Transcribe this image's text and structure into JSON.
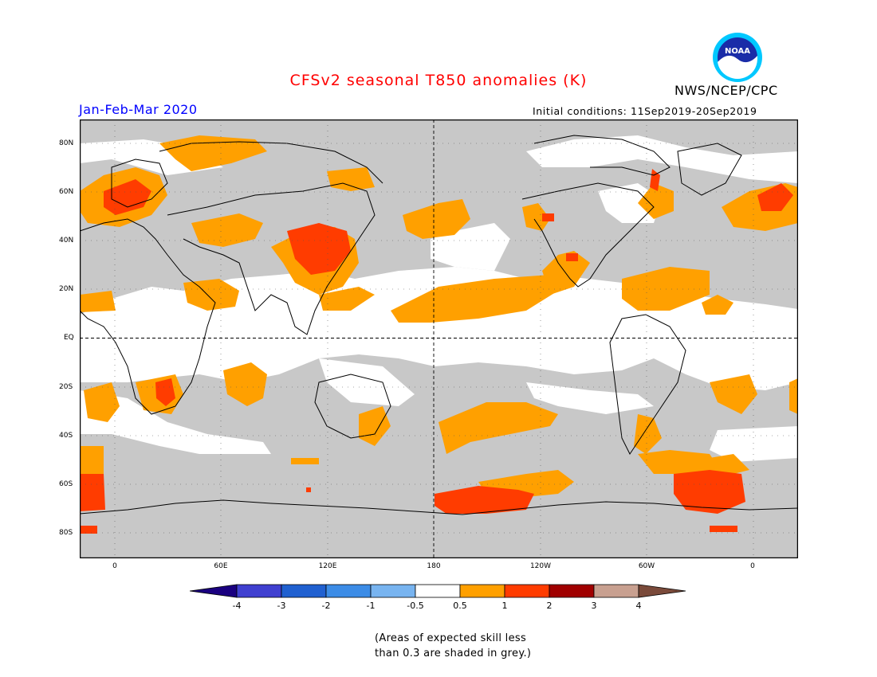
{
  "title": "CFSv2 seasonal T850 anomalies (K)",
  "agency": "NWS/NCEP/CPC",
  "logo_text": "NOAA",
  "season": "Jan-Feb-Mar 2020",
  "initial_conditions": "Initial conditions: 11Sep2019-20Sep2019",
  "lat_labels": [
    "80N",
    "60N",
    "40N",
    "20N",
    "EQ",
    "20S",
    "40S",
    "60S",
    "80S"
  ],
  "lon_labels": [
    "0",
    "60E",
    "120E",
    "180",
    "120W",
    "60W",
    "0"
  ],
  "colorbar": {
    "labels": [
      "-4",
      "-3",
      "-2",
      "-1",
      "-0.5",
      "0.5",
      "1",
      "2",
      "3",
      "4"
    ],
    "colors": [
      "#1a0080",
      "#4040d0",
      "#2060d0",
      "#3c8ce6",
      "#78b4f0",
      "#ffffff",
      "#ffa000",
      "#ff3c00",
      "#a00000",
      "#c8a090",
      "#7a4a3a"
    ]
  },
  "skill_note": [
    "(Areas of expected skill less",
    "than 0.3 are shaded in grey.)"
  ],
  "colors": {
    "grey_low_skill": "#c8c8c8",
    "anom_0_5_1": "#ffa000",
    "anom_1_2": "#ff3c00",
    "title": "#ff0000",
    "season": "#0000ff"
  }
}
